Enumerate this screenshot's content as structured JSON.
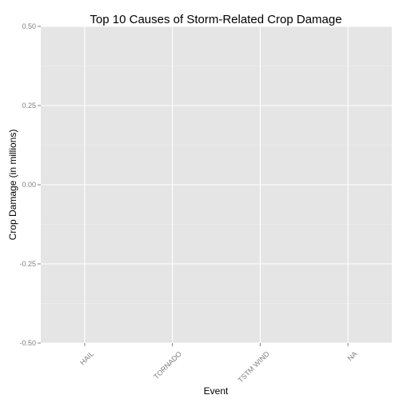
{
  "chart_data": {
    "type": "bar",
    "title": "Top 10 Causes of Storm-Related Crop Damage",
    "xlabel": "Event",
    "ylabel": "Crop Damage (in millions)",
    "categories": [
      "HAIL",
      "TORNADO",
      "TSTM WIND",
      "NA"
    ],
    "values": [
      null,
      null,
      null,
      null
    ],
    "ylim": [
      -0.5,
      0.5
    ],
    "yticks": [
      -0.5,
      -0.25,
      0,
      0.25,
      0.5
    ],
    "ytick_labels": [
      "-0.50",
      "-0.25",
      "0.00",
      "0.25",
      "0.50"
    ],
    "grid": true,
    "colors": {
      "panel_background": "#e5e5e5",
      "major_grid": "#ffffff",
      "minor_grid": "#f2f2f2",
      "tick_label": "#7f7f7f",
      "text": "#000000"
    }
  }
}
